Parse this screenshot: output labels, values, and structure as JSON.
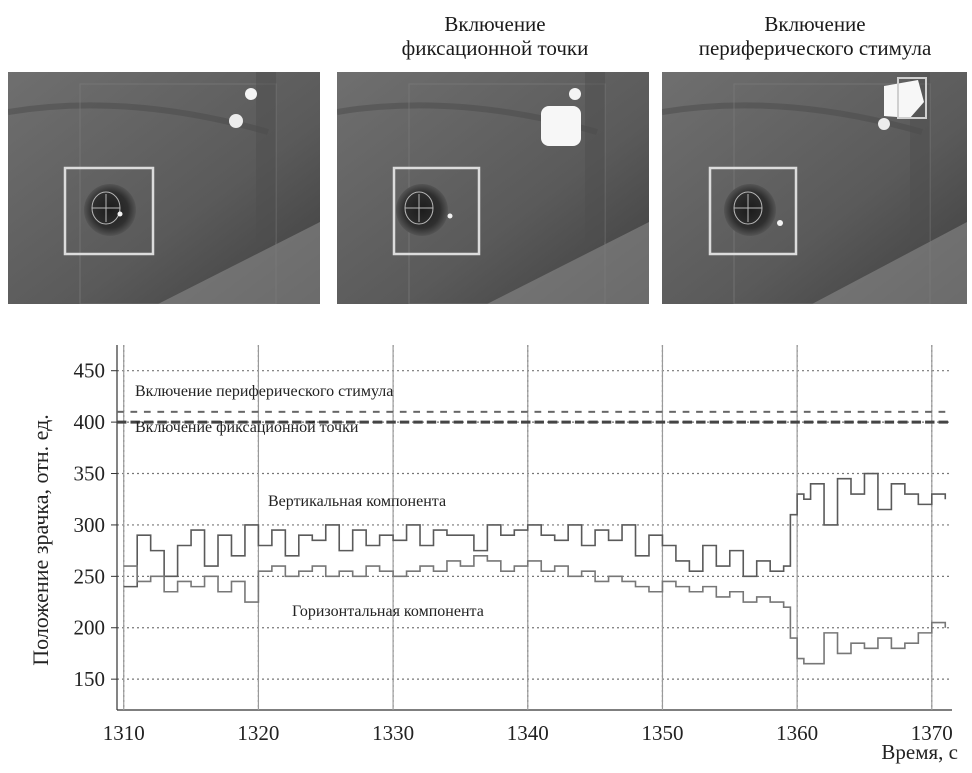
{
  "panels": [
    {
      "title_line1": "",
      "title_line2": "",
      "label": "eye-photo-baseline"
    },
    {
      "title_line1": "Включение",
      "title_line2": "фиксационной точки",
      "label": "eye-photo-fixation-on"
    },
    {
      "title_line1": "Включение",
      "title_line2": "периферического стимула",
      "label": "eye-photo-peripheral-on"
    }
  ],
  "chart_data": {
    "type": "line",
    "ylabel": "Положение зрачка, отн. ед.",
    "xlabel": "Время, с",
    "xlim": [
      1309.5,
      1371.5
    ],
    "ylim": [
      120,
      475
    ],
    "xticks": [
      1310,
      1320,
      1330,
      1340,
      1350,
      1360,
      1370
    ],
    "yticks": [
      150,
      200,
      250,
      300,
      350,
      400,
      450
    ],
    "grid": "dotted",
    "vertical_lines": [
      1310,
      1320,
      1330,
      1340,
      1350,
      1360,
      1370
    ],
    "annotations": {
      "peripheral": "Включение периферического стимула",
      "fixation": "Включение фиксационной точки",
      "vertical": "Вертикальная компонента",
      "horizontal": "Горизонтальная компонента"
    },
    "series": [
      {
        "key": "vertical",
        "x": [
          1310,
          1311,
          1312,
          1313,
          1314,
          1315,
          1316,
          1317,
          1318,
          1319,
          1320,
          1321,
          1322,
          1323,
          1324,
          1325,
          1326,
          1327,
          1328,
          1329,
          1330,
          1331,
          1332,
          1333,
          1334,
          1335,
          1336,
          1337,
          1338,
          1339,
          1340,
          1341,
          1342,
          1343,
          1344,
          1345,
          1346,
          1347,
          1348,
          1349,
          1350,
          1351,
          1352,
          1353,
          1354,
          1355,
          1356,
          1357,
          1358,
          1359,
          1359.5,
          1360,
          1360.5,
          1361,
          1362,
          1363,
          1364,
          1365,
          1366,
          1367,
          1368,
          1369,
          1370,
          1371
        ],
        "y": [
          240,
          290,
          275,
          250,
          280,
          295,
          260,
          290,
          270,
          300,
          280,
          295,
          270,
          290,
          285,
          300,
          275,
          295,
          280,
          290,
          285,
          300,
          280,
          295,
          290,
          290,
          275,
          300,
          290,
          295,
          300,
          290,
          285,
          300,
          280,
          295,
          285,
          300,
          270,
          290,
          280,
          265,
          255,
          280,
          260,
          275,
          250,
          265,
          255,
          260,
          310,
          330,
          325,
          340,
          300,
          345,
          330,
          350,
          315,
          340,
          330,
          320,
          330,
          325
        ]
      },
      {
        "key": "horizontal",
        "x": [
          1310,
          1311,
          1312,
          1313,
          1314,
          1315,
          1316,
          1317,
          1318,
          1319,
          1320,
          1321,
          1322,
          1323,
          1324,
          1325,
          1326,
          1327,
          1328,
          1329,
          1330,
          1331,
          1332,
          1333,
          1334,
          1335,
          1336,
          1337,
          1338,
          1339,
          1340,
          1341,
          1342,
          1343,
          1344,
          1345,
          1346,
          1347,
          1348,
          1349,
          1350,
          1351,
          1352,
          1353,
          1354,
          1355,
          1356,
          1357,
          1358,
          1359,
          1359.5,
          1360,
          1360.5,
          1361,
          1362,
          1363,
          1364,
          1365,
          1366,
          1367,
          1368,
          1369,
          1370,
          1371
        ],
        "y": [
          260,
          245,
          250,
          235,
          245,
          240,
          250,
          235,
          245,
          225,
          255,
          260,
          250,
          255,
          260,
          250,
          255,
          250,
          260,
          255,
          250,
          255,
          260,
          255,
          265,
          260,
          270,
          265,
          255,
          260,
          265,
          255,
          260,
          250,
          255,
          245,
          250,
          245,
          240,
          235,
          245,
          240,
          235,
          240,
          230,
          235,
          225,
          230,
          225,
          220,
          190,
          170,
          165,
          165,
          195,
          175,
          185,
          180,
          190,
          180,
          185,
          195,
          205,
          200
        ]
      }
    ]
  }
}
